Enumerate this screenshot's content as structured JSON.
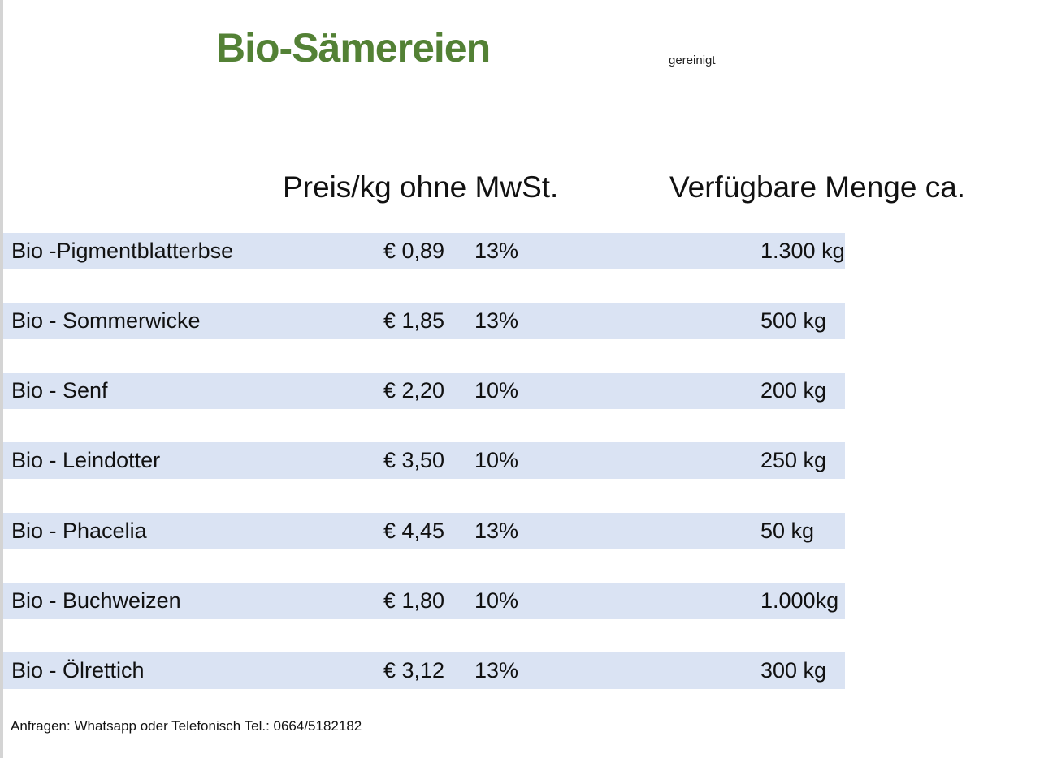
{
  "header": {
    "title": "Bio-Sämereien",
    "note": "gereinigt"
  },
  "columns": {
    "price": "Preis/kg ohne MwSt.",
    "quantity": "Verfügbare Menge ca."
  },
  "rows": [
    {
      "name": "Bio -Pigmentblatterbse",
      "price": "€ 0,89",
      "vat": "13%",
      "quantity": "1.300 kg"
    },
    {
      "name": "Bio - Sommerwicke",
      "price": "€ 1,85",
      "vat": "13%",
      "quantity": "500 kg"
    },
    {
      "name": "Bio - Senf",
      "price": "€ 2,20",
      "vat": "10%",
      "quantity": "200 kg"
    },
    {
      "name": "Bio - Leindotter",
      "price": "€ 3,50",
      "vat": "10%",
      "quantity": "250 kg"
    },
    {
      "name": "Bio - Phacelia",
      "price": "€ 4,45",
      "vat": "13%",
      "quantity": "50 kg"
    },
    {
      "name": "Bio - Buchweizen",
      "price": "€ 1,80",
      "vat": "10%",
      "quantity": "1.000kg"
    },
    {
      "name": "Bio - Ölrettich",
      "price": "€ 3,12",
      "vat": "13%",
      "quantity": "300 kg"
    }
  ],
  "footer": {
    "text": "Anfragen: Whatsapp oder Telefonisch  Tel.: 0664/5182182"
  },
  "colors": {
    "title": "#538135",
    "row_background": "#dae3f3"
  }
}
